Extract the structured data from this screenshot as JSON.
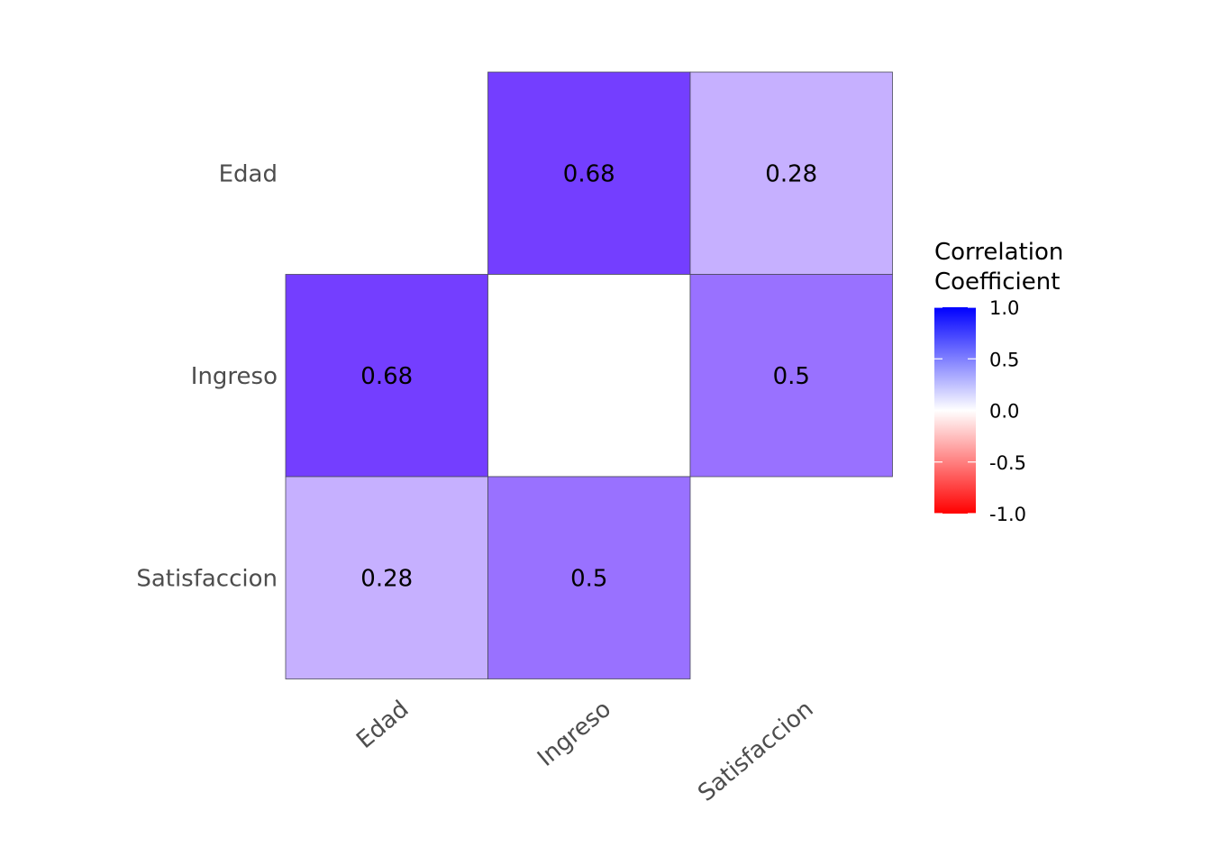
{
  "chart_data": {
    "type": "heatmap",
    "variables": [
      "Edad",
      "Ingreso",
      "Satisfaccion"
    ],
    "x_categories": [
      "Edad",
      "Ingreso",
      "Satisfaccion"
    ],
    "y_categories": [
      "Edad",
      "Ingreso",
      "Satisfaccion"
    ],
    "cells": [
      {
        "x": "Ingreso",
        "y": "Edad",
        "value": 0.68,
        "label": "0.68"
      },
      {
        "x": "Satisfaccion",
        "y": "Edad",
        "value": 0.28,
        "label": "0.28"
      },
      {
        "x": "Edad",
        "y": "Ingreso",
        "value": 0.68,
        "label": "0.68"
      },
      {
        "x": "Ingreso",
        "y": "Ingreso",
        "value": 0.0,
        "label": ""
      },
      {
        "x": "Satisfaccion",
        "y": "Ingreso",
        "value": 0.5,
        "label": "0.5"
      },
      {
        "x": "Edad",
        "y": "Satisfaccion",
        "value": 0.28,
        "label": "0.28"
      },
      {
        "x": "Ingreso",
        "y": "Satisfaccion",
        "value": 0.5,
        "label": "0.5"
      }
    ],
    "legend": {
      "title_lines": [
        "Correlation",
        "Coefficient"
      ],
      "range": [
        -1,
        1
      ],
      "ticks": [
        1.0,
        0.5,
        0.0,
        -0.5,
        -1.0
      ],
      "tick_labels": [
        "1.0",
        "0.5",
        "0.0",
        "-0.5",
        "-1.0"
      ],
      "colors": {
        "low": "#ff0000",
        "mid": "#ffffff",
        "high": "#0000ff"
      },
      "placement": "right"
    },
    "grid": false
  }
}
